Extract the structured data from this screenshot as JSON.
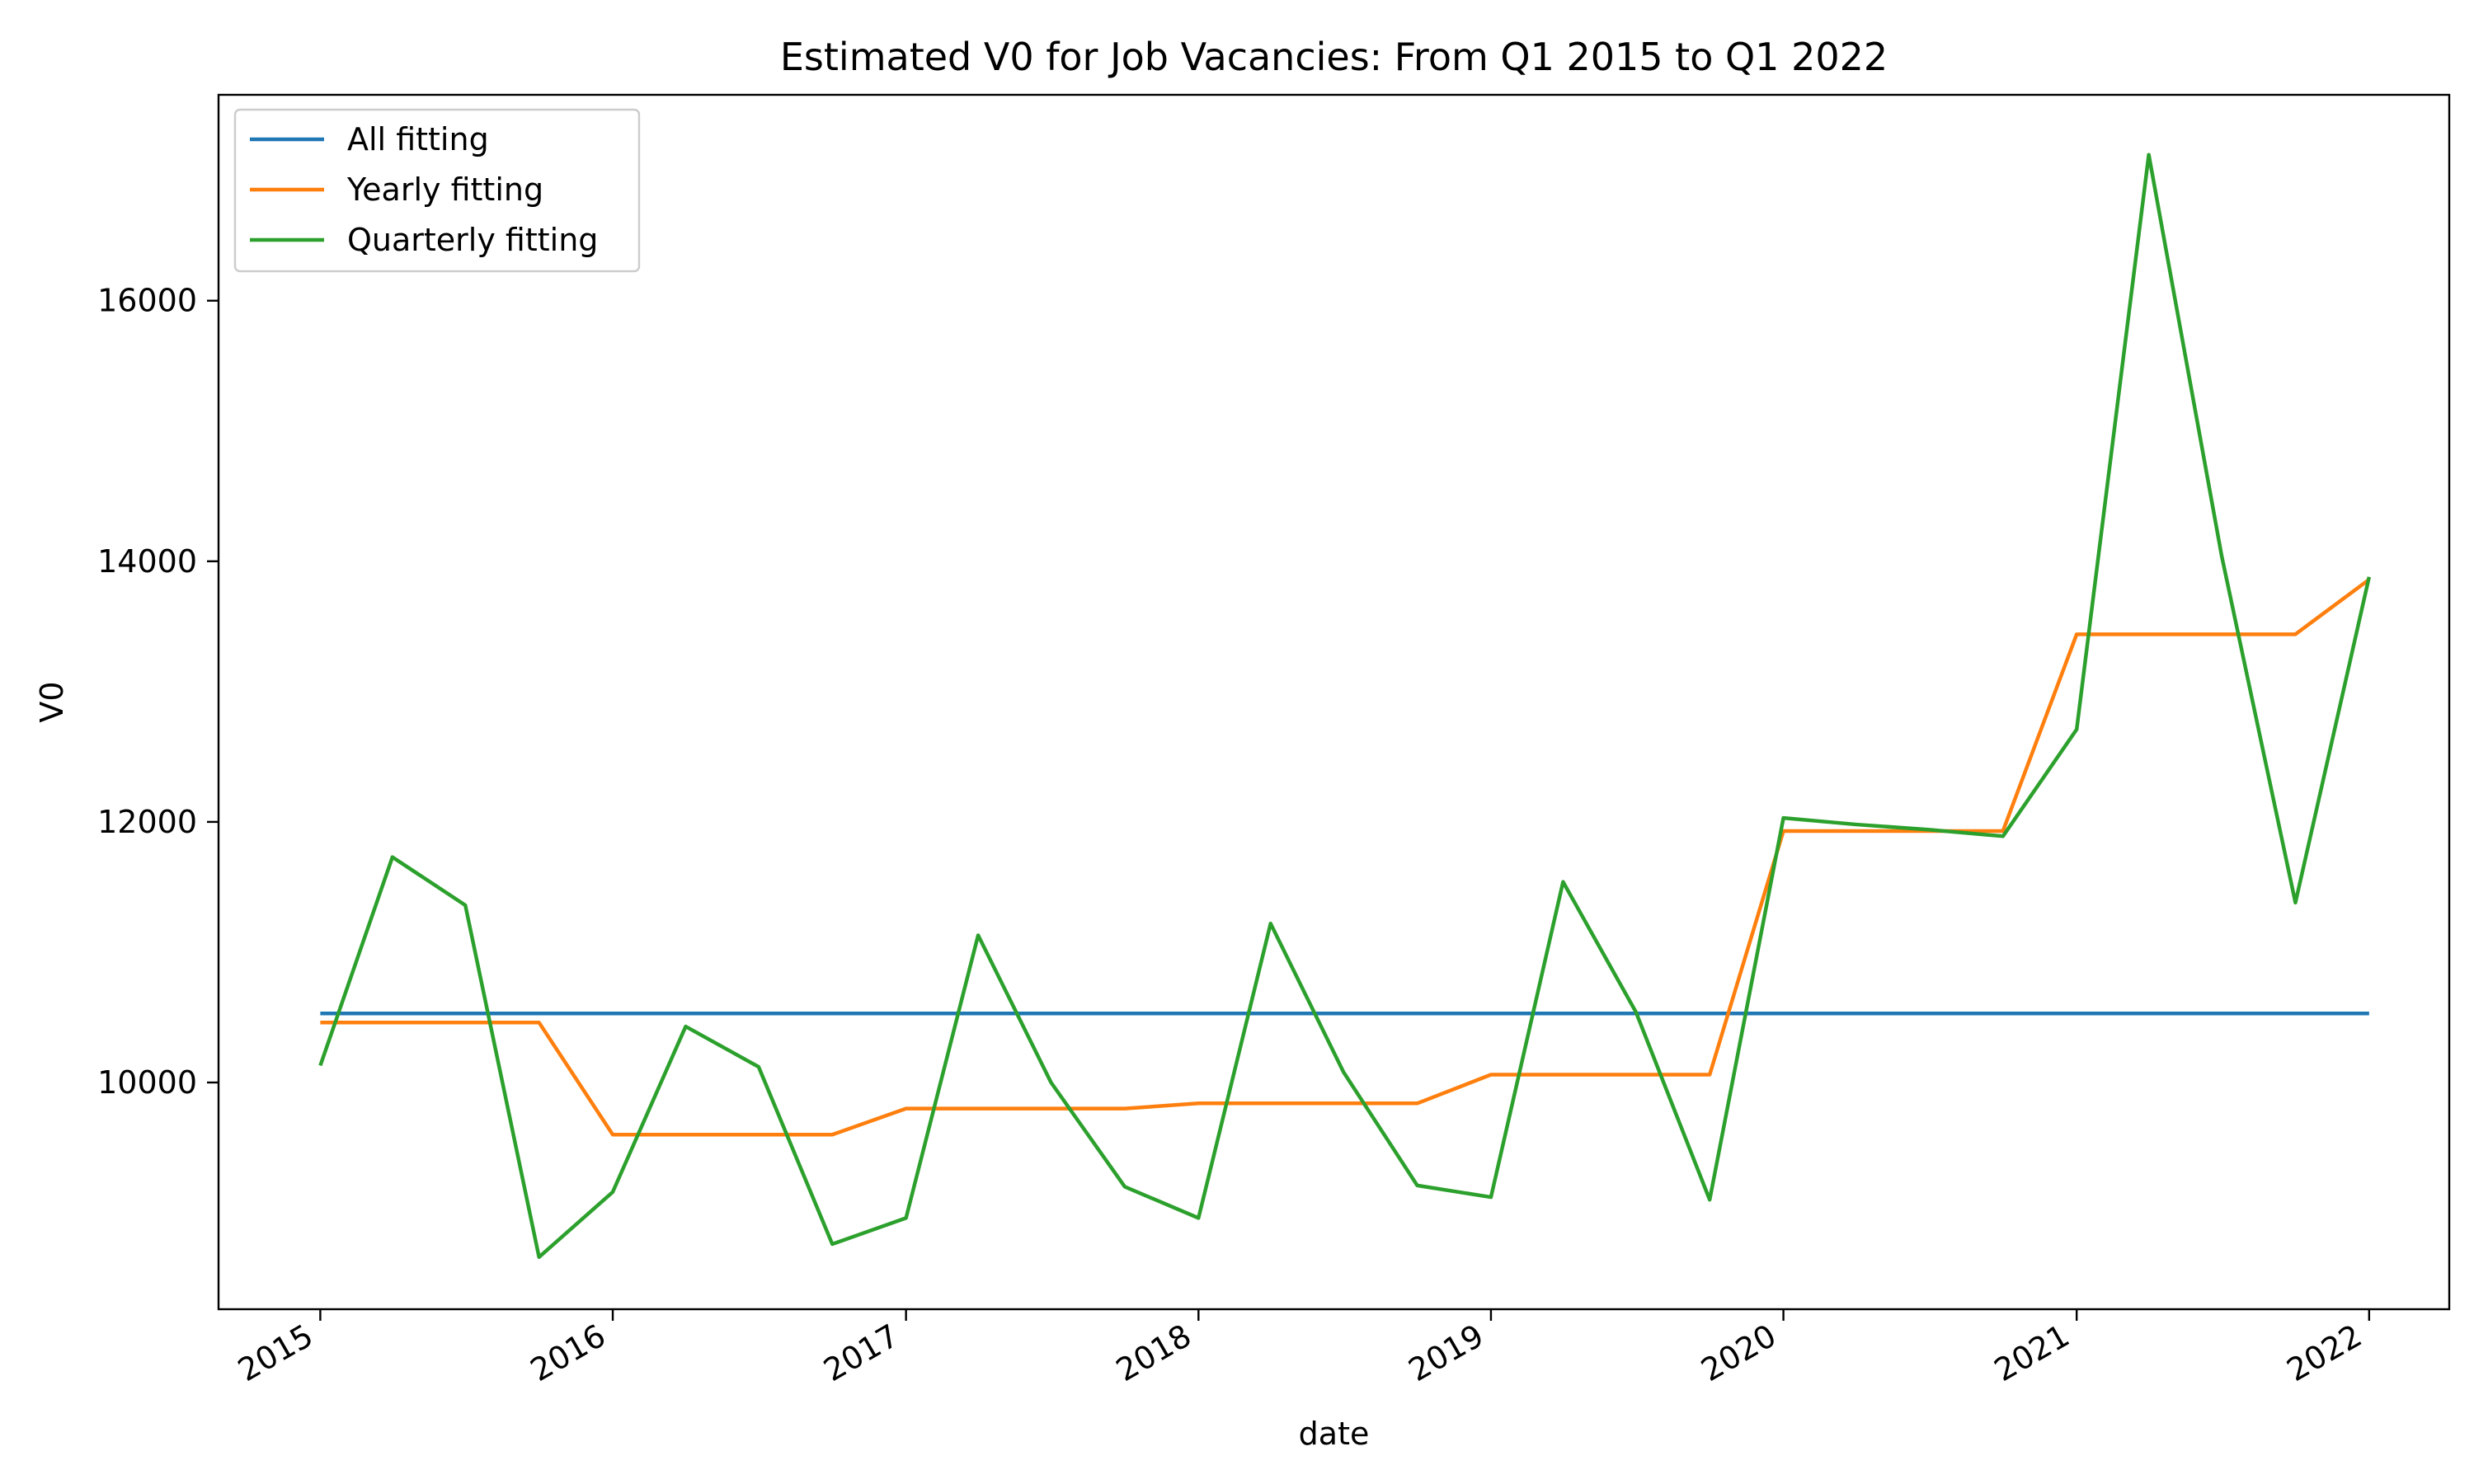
{
  "chart_data": {
    "type": "line",
    "title": "Estimated V0 for Job Vacancies: From Q1 2015 to Q1 2022",
    "xlabel": "date",
    "ylabel": "V0",
    "x": [
      "2015-01-01",
      "2015-04-01",
      "2015-07-01",
      "2015-10-01",
      "2016-01-01",
      "2016-04-01",
      "2016-07-01",
      "2016-10-01",
      "2017-01-01",
      "2017-04-01",
      "2017-07-01",
      "2017-10-01",
      "2018-01-01",
      "2018-04-01",
      "2018-07-01",
      "2018-10-01",
      "2019-01-01",
      "2019-04-01",
      "2019-07-01",
      "2019-10-01",
      "2020-01-01",
      "2020-04-01",
      "2020-07-01",
      "2020-10-01",
      "2021-01-01",
      "2021-04-01",
      "2021-07-01",
      "2021-10-01",
      "2022-01-01"
    ],
    "xlim": [
      "2014-08-27",
      "2022-04-11"
    ],
    "xticks": [
      "2015",
      "2016",
      "2017",
      "2018",
      "2019",
      "2020",
      "2021",
      "2022"
    ],
    "ylim": [
      8260,
      17580
    ],
    "yticks": [
      10000,
      12000,
      14000,
      16000
    ],
    "grid": false,
    "legend_position": "top-left",
    "series": [
      {
        "name": "All fitting",
        "color": "#1f77b4",
        "values": [
          10530,
          10530,
          10530,
          10530,
          10530,
          10530,
          10530,
          10530,
          10530,
          10530,
          10530,
          10530,
          10530,
          10530,
          10530,
          10530,
          10530,
          10530,
          10530,
          10530,
          10530,
          10530,
          10530,
          10530,
          10530,
          10530,
          10530,
          10530,
          10530
        ]
      },
      {
        "name": "Yearly fitting",
        "color": "#ff7f0e",
        "values": [
          10460,
          10460,
          10460,
          10460,
          9600,
          9600,
          9600,
          9600,
          9800,
          9800,
          9800,
          9800,
          9840,
          9840,
          9840,
          9840,
          10060,
          10060,
          10060,
          10060,
          11930,
          11930,
          11930,
          11930,
          13440,
          13440,
          13440,
          13440,
          13860
        ]
      },
      {
        "name": "Quarterly fitting",
        "color": "#2ca02c",
        "values": [
          10130,
          11730,
          11360,
          8660,
          9160,
          10430,
          10120,
          8760,
          8960,
          11130,
          10000,
          9200,
          8960,
          11220,
          10080,
          9210,
          9120,
          11540,
          10540,
          9100,
          12030,
          11980,
          11940,
          11890,
          12710,
          17120,
          14040,
          11380,
          13880
        ]
      }
    ]
  }
}
